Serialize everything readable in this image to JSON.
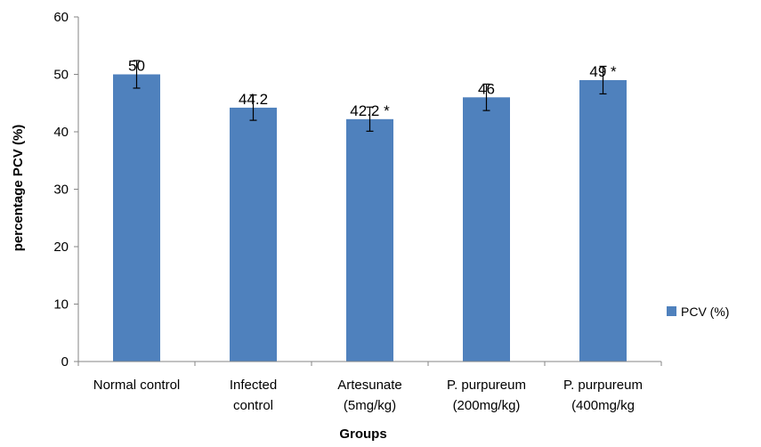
{
  "chart_data": {
    "type": "bar",
    "categories": [
      [
        "Normal control"
      ],
      [
        "Infected",
        "control"
      ],
      [
        "Artesunate",
        "(5mg/kg)"
      ],
      [
        "P. purpureum",
        "(200mg/kg)"
      ],
      [
        "P. purpureum",
        "(400mg/kg"
      ]
    ],
    "series": [
      {
        "name": "PCV (%)",
        "values": [
          50,
          44.2,
          42.2,
          46,
          49
        ],
        "errors": [
          2.4,
          2.2,
          2.1,
          2.3,
          2.4
        ],
        "data_labels": [
          "50",
          "44.2",
          "42.2 *",
          "46",
          "49 *"
        ],
        "color": "#4f81bd"
      }
    ],
    "title": "",
    "xlabel": "Groups",
    "ylabel": "percentage PCV (%)",
    "ylim": [
      0,
      60
    ],
    "yticks": [
      0,
      10,
      20,
      30,
      40,
      50,
      60
    ],
    "grid": false,
    "legend": "right"
  }
}
